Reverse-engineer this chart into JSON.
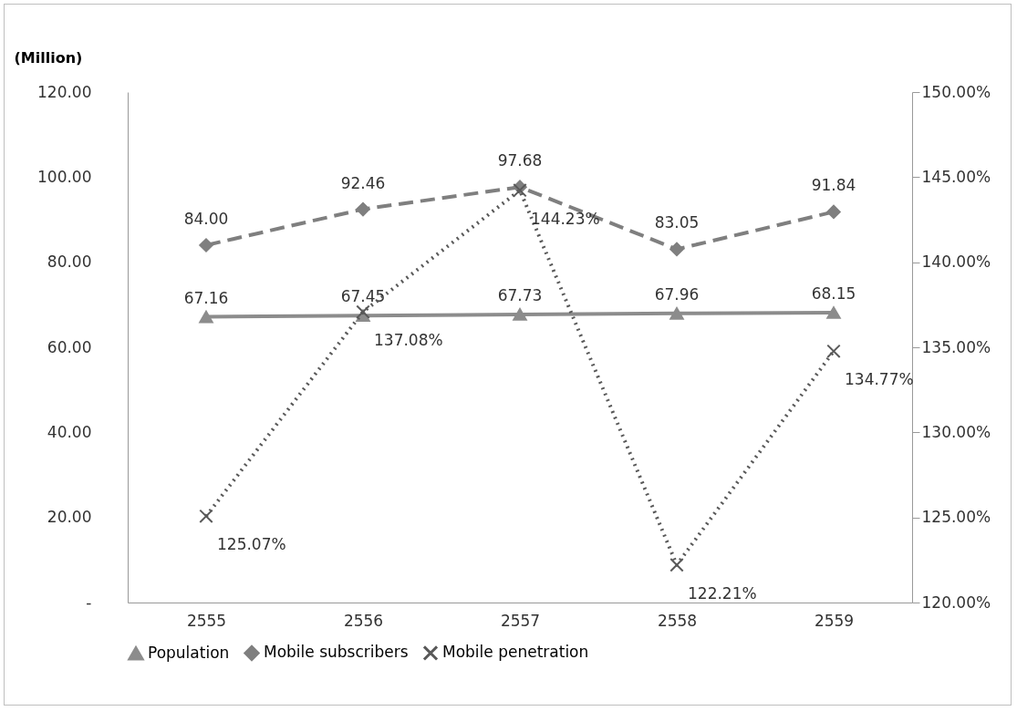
{
  "chart_data": {
    "type": "line",
    "ylabel": "(Million)",
    "categories": [
      "2555",
      "2556",
      "2557",
      "2558",
      "2559"
    ],
    "series": [
      {
        "name": "Population",
        "color": "#8c8c8c",
        "marker": "triangle",
        "line_style": "solid",
        "values": [
          67.16,
          67.45,
          67.73,
          67.96,
          68.15
        ],
        "value_labels": [
          "67.16",
          "67.45",
          "67.73",
          "67.96",
          "68.15"
        ]
      },
      {
        "name": "Mobile subscribers",
        "color": "#7f7f7f",
        "marker": "diamond",
        "line_style": "dashed",
        "values": [
          84.0,
          92.46,
          97.68,
          83.05,
          91.84
        ],
        "value_labels": [
          "84.00",
          "92.46",
          "97.68",
          "83.05",
          "91.84"
        ]
      },
      {
        "name": "Mobile penetration",
        "color": "#595959",
        "marker": "cross",
        "line_style": "dotted",
        "axis": "y2",
        "values": [
          125.07,
          137.08,
          144.23,
          122.21,
          134.77
        ],
        "value_labels": [
          "125.07%",
          "137.08%",
          "144.23%",
          "122.21%",
          "134.77%"
        ]
      }
    ],
    "ylim": [
      0,
      120
    ],
    "yticks": [
      {
        "value": 0,
        "label": "-"
      },
      {
        "value": 20,
        "label": "20.00"
      },
      {
        "value": 40,
        "label": "40.00"
      },
      {
        "value": 60,
        "label": "60.00"
      },
      {
        "value": 80,
        "label": "80.00"
      },
      {
        "value": 100,
        "label": "100.00"
      },
      {
        "value": 120,
        "label": "120.00"
      }
    ],
    "y2lim": [
      120,
      150
    ],
    "y2ticks": [
      {
        "value": 120,
        "label": "120.00%"
      },
      {
        "value": 125,
        "label": "125.00%"
      },
      {
        "value": 130,
        "label": "130.00%"
      },
      {
        "value": 135,
        "label": "135.00%"
      },
      {
        "value": 140,
        "label": "140.00%"
      },
      {
        "value": 145,
        "label": "145.00%"
      },
      {
        "value": 150,
        "label": "150.00%"
      }
    ],
    "data_labels": true,
    "grid": false,
    "legend": "bottom"
  }
}
